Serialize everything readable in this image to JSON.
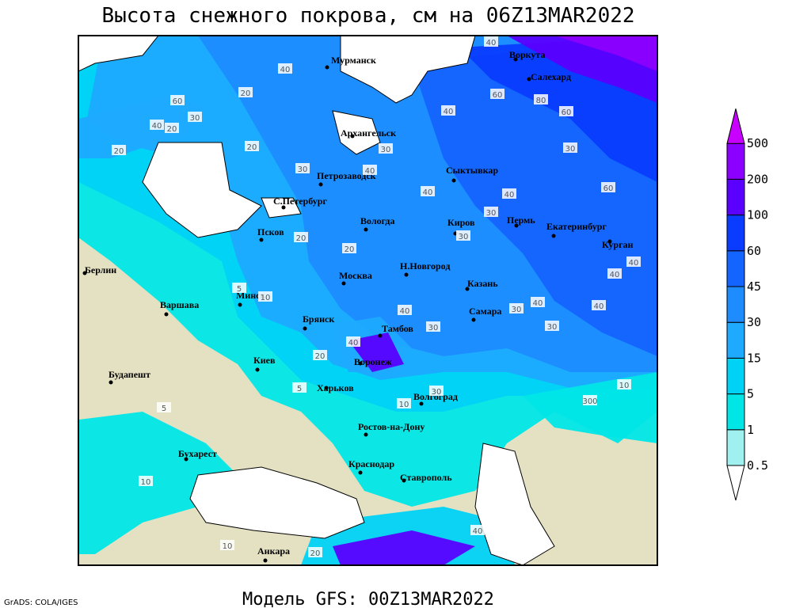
{
  "title": "Высота снежного покрова, см на 06Z13MAR2022",
  "footer": "Модель GFS: 00Z13MAR2022",
  "credit": "GrADS: COLA/IGES",
  "colorbar": {
    "levels": [
      0.5,
      1,
      5,
      15,
      30,
      45,
      60,
      100,
      200,
      500
    ],
    "colors": [
      "#ffffff",
      "#a0f0f0",
      "#00e6e6",
      "#00d2f5",
      "#1eaaff",
      "#1e8cff",
      "#1464ff",
      "#0a3cff",
      "#5a00ff",
      "#8c00ff",
      "#c800ff"
    ]
  },
  "cities": [
    "Мурманск",
    "Воркута",
    "Салехард",
    "Архангельск",
    "Сыктывкар",
    "Петрозаводск",
    "С.Петербург",
    "Вологда",
    "Киров",
    "Пермь",
    "Екатеринбург",
    "Курган",
    "Псков",
    "Н.Новгород",
    "Москва",
    "Казань",
    "Берлин",
    "Минск",
    "Варшава",
    "Самара",
    "Брянск",
    "Тамбов",
    "Воронеж",
    "Киев",
    "Харьков",
    "Будапешт",
    "Волгоград",
    "Ростов-на-Дону",
    "Бухарест",
    "Краснодар",
    "Ставрополь",
    "Анкара"
  ],
  "contour_labels": [
    "40",
    "40",
    "60",
    "80",
    "60",
    "40",
    "20",
    "60",
    "30",
    "40",
    "30",
    "60",
    "20",
    "20",
    "20",
    "30",
    "40",
    "30",
    "40",
    "40",
    "30",
    "30",
    "20",
    "40",
    "40",
    "30",
    "40",
    "30",
    "40",
    "30",
    "20",
    "20",
    "10",
    "10",
    "5",
    "40",
    "40",
    "30",
    "300",
    "10",
    "5",
    "10",
    "5",
    "10",
    "20",
    "40"
  ]
}
